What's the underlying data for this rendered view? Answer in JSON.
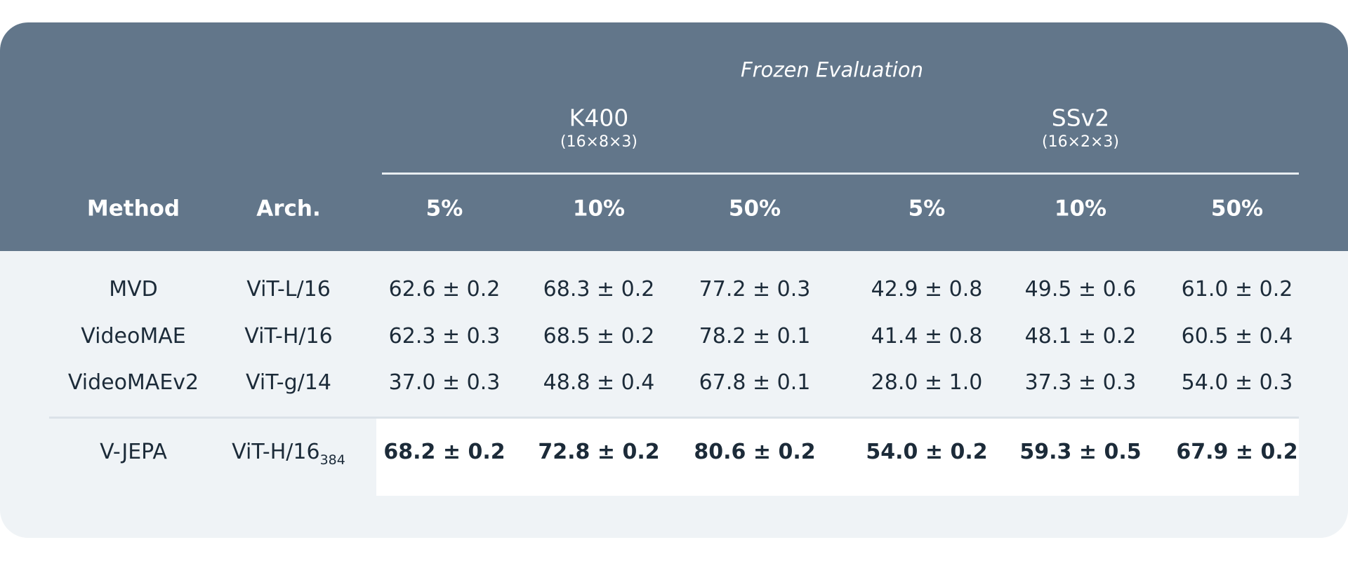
{
  "chart_data": {
    "type": "table",
    "title": "Frozen Evaluation",
    "groups": [
      {
        "name": "K400",
        "subtitle": "(16×8×3)"
      },
      {
        "name": "SSv2",
        "subtitle": "(16×2×3)"
      }
    ],
    "columns": [
      "Method",
      "Arch.",
      "5%",
      "10%",
      "50%",
      "5%",
      "10%",
      "50%"
    ],
    "rows": [
      {
        "method": "MVD",
        "arch": "ViT-L/16",
        "arch_sub": "",
        "values": [
          "62.6 ± 0.2",
          "68.3 ± 0.2",
          "77.2 ± 0.3",
          "42.9 ± 0.8",
          "49.5 ± 0.6",
          "61.0 ± 0.2"
        ]
      },
      {
        "method": "VideoMAE",
        "arch": "ViT-H/16",
        "arch_sub": "",
        "values": [
          "62.3 ± 0.3",
          "68.5 ± 0.2",
          "78.2 ± 0.1",
          "41.4 ± 0.8",
          "48.1 ± 0.2",
          "60.5 ± 0.4"
        ]
      },
      {
        "method": "VideoMAEv2",
        "arch": "ViT-g/14",
        "arch_sub": "",
        "values": [
          "37.0 ± 0.3",
          "48.8 ± 0.4",
          "67.8 ± 0.1",
          "28.0 ± 1.0",
          "37.3 ± 0.3",
          "54.0 ± 0.3"
        ]
      },
      {
        "method": "V-JEPA",
        "arch": "ViT-H/16",
        "arch_sub": "384",
        "highlight": true,
        "values": [
          "68.2 ± 0.2",
          "72.8 ± 0.2",
          "80.6 ± 0.2",
          "54.0 ± 0.2",
          "59.3 ± 0.5",
          "67.9 ± 0.2"
        ]
      }
    ]
  },
  "colors": {
    "header_bg": "#62768a",
    "body_bg": "#eff3f6",
    "highlight_bg": "#ffffff",
    "header_text": "#ffffff",
    "body_text": "#1c2b39"
  }
}
